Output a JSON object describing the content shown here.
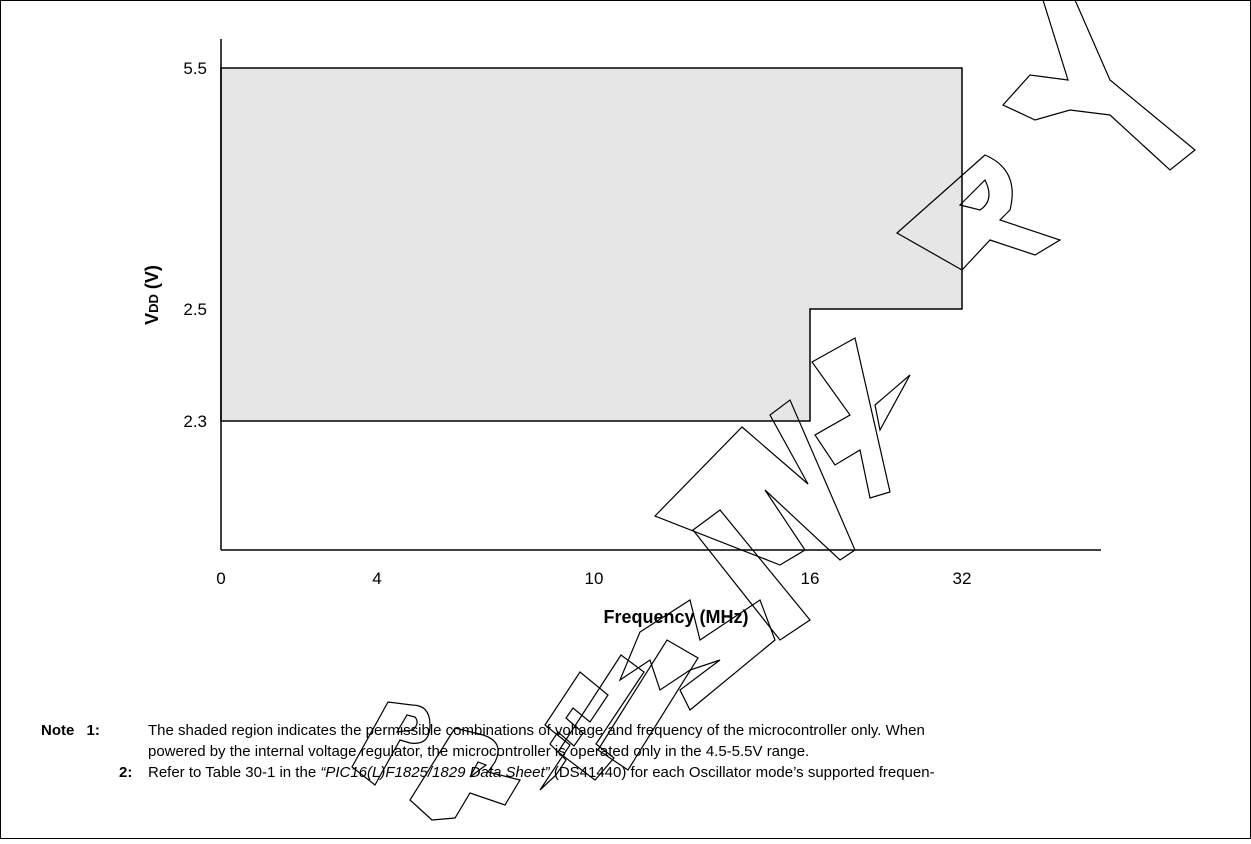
{
  "chart_data": {
    "type": "area",
    "title": "",
    "ylabel_main": "V",
    "ylabel_sub": "DD",
    "ylabel_unit": "(V)",
    "xlabel": "Frequency (MHz)",
    "x_ticks": [
      {
        "value": 0,
        "label": "0"
      },
      {
        "value": 4,
        "label": "4"
      },
      {
        "value": 10,
        "label": "10"
      },
      {
        "value": 16,
        "label": "16"
      },
      {
        "value": 32,
        "label": "32"
      }
    ],
    "y_ticks": [
      {
        "value": 2.3,
        "label": "2.3"
      },
      {
        "value": 2.5,
        "label": "2.5"
      },
      {
        "value": 5.5,
        "label": "5.5"
      }
    ],
    "region": [
      {
        "x": 0,
        "y": 2.3
      },
      {
        "x": 16,
        "y": 2.3
      },
      {
        "x": 16,
        "y": 2.5
      },
      {
        "x": 32,
        "y": 2.5
      },
      {
        "x": 32,
        "y": 5.5
      },
      {
        "x": 0,
        "y": 5.5
      }
    ],
    "grid": false,
    "legend": "none",
    "colors": {
      "fill": "#e6e6e6",
      "stroke": "#000000"
    }
  },
  "watermark": {
    "text": "PRELIMINARY"
  },
  "notes": {
    "label": "Note",
    "n1_num": "1:",
    "n1_line1": "The shaded region indicates the permissible combinations of voltage and frequency of the microcontroller only. When",
    "n1_line2": "powered by the internal voltage regulator, the microcontroller is operated only in the 4.5-5.5V range.",
    "n2_num": "2:",
    "n2_pre": "Refer to Table 30-1 in the ",
    "n2_italic": "“PIC16(L)F1825/1829 Data Sheet”",
    "n2_post": " (DS41440) for each Oscillator mode’s supported frequen-"
  }
}
